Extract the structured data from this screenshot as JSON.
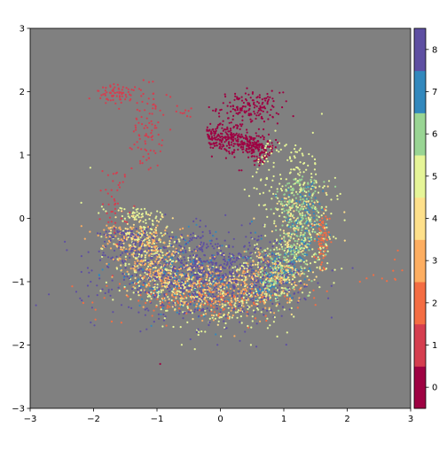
{
  "chart_data": {
    "type": "scatter",
    "title": "",
    "xlabel": "",
    "ylabel": "",
    "xlim": [
      -3,
      3
    ],
    "ylim": [
      -3,
      3
    ],
    "x_ticks": [
      -3,
      -2,
      -1,
      0,
      1,
      2,
      3
    ],
    "y_ticks": [
      -3,
      -2,
      -1,
      0,
      1,
      2,
      3
    ],
    "x_tick_labels": [
      "−3",
      "−2",
      "−1",
      "0",
      "1",
      "2",
      "3"
    ],
    "y_tick_labels": [
      "−3",
      "−2",
      "−1",
      "0",
      "1",
      "2",
      "3"
    ],
    "background_color": "#808080",
    "grid": false,
    "colorbar": {
      "type": "discrete",
      "labels": [
        "0",
        "1",
        "2",
        "3",
        "4",
        "5",
        "6",
        "7",
        "8"
      ],
      "colors": [
        "#9e0142",
        "#d53e4f",
        "#f46d43",
        "#fdae61",
        "#fee08b",
        "#e6f598",
        "#99d594",
        "#3288bd",
        "#5e4fa2"
      ],
      "placement": "right"
    },
    "clusters": [
      {
        "class": "0",
        "shape": "arc",
        "cx": 0.0,
        "cy": 0.05,
        "rx": 1.15,
        "ry": 1.25,
        "a0": 100,
        "a1": 48,
        "spread": 0.09,
        "count": 380
      },
      {
        "class": "0",
        "shape": "blob",
        "x": 0.45,
        "y": 1.75,
        "sx": 0.25,
        "sy": 0.12,
        "count": 160
      },
      {
        "class": "1",
        "shape": "blob",
        "x": -1.6,
        "y": 1.95,
        "sx": 0.2,
        "sy": 0.08,
        "count": 70
      },
      {
        "class": "1",
        "shape": "blob",
        "x": -1.15,
        "y": 1.45,
        "sx": 0.12,
        "sy": 0.35,
        "count": 90
      },
      {
        "class": "1",
        "shape": "blob",
        "x": -1.65,
        "y": 0.25,
        "sx": 0.1,
        "sy": 0.3,
        "count": 45
      },
      {
        "class": "1",
        "shape": "blob",
        "x": -0.55,
        "y": 1.7,
        "sx": 0.07,
        "sy": 0.05,
        "count": 10
      },
      {
        "class": "2",
        "shape": "blob",
        "x": 1.6,
        "y": -0.4,
        "sx": 0.06,
        "sy": 0.25,
        "count": 70
      },
      {
        "class": "2",
        "shape": "blob",
        "x": -0.3,
        "y": -1.25,
        "sx": 0.8,
        "sy": 0.18,
        "count": 160
      },
      {
        "class": "2",
        "shape": "blob",
        "x": 2.6,
        "y": -0.85,
        "sx": 0.12,
        "sy": 0.1,
        "count": 8
      },
      {
        "class": "3",
        "shape": "arc",
        "cx": 0.0,
        "cy": -0.1,
        "rx": 1.45,
        "ry": 1.05,
        "a0": 180,
        "a1": 320,
        "spread": 0.22,
        "count": 600
      },
      {
        "class": "4",
        "shape": "arc",
        "cx": 0.0,
        "cy": 0.0,
        "rx": 1.3,
        "ry": 1.2,
        "a0": 175,
        "a1": 380,
        "spread": 0.2,
        "count": 380
      },
      {
        "class": "5",
        "shape": "arc",
        "cx": 0.0,
        "cy": -0.05,
        "rx": 1.35,
        "ry": 1.3,
        "a0": 170,
        "a1": 420,
        "spread": 0.22,
        "count": 900
      },
      {
        "class": "6",
        "shape": "arc",
        "cx": 0.0,
        "cy": 0.0,
        "rx": 1.3,
        "ry": 1.2,
        "a0": 300,
        "a1": 390,
        "spread": 0.15,
        "count": 320
      },
      {
        "class": "7",
        "shape": "arc",
        "cx": 0.0,
        "cy": 0.0,
        "rx": 1.35,
        "ry": 1.25,
        "a0": 290,
        "a1": 385,
        "spread": 0.12,
        "count": 200
      },
      {
        "class": "7",
        "shape": "blob",
        "x": -0.6,
        "y": -0.9,
        "sx": 0.6,
        "sy": 0.3,
        "count": 150
      },
      {
        "class": "8",
        "shape": "blob",
        "x": -0.2,
        "y": -0.9,
        "sx": 0.75,
        "sy": 0.32,
        "count": 1000
      },
      {
        "class": "8",
        "shape": "arc",
        "cx": 0.0,
        "cy": 0.0,
        "rx": 1.55,
        "ry": 1.0,
        "a0": 190,
        "a1": 215,
        "spread": 0.12,
        "count": 110
      }
    ],
    "outliers": [
      {
        "x": -0.95,
        "y": -2.3,
        "class": "0"
      },
      {
        "x": 2.55,
        "y": -0.95,
        "class": "2"
      },
      {
        "x": 2.75,
        "y": -0.65,
        "class": "2"
      },
      {
        "x": 2.2,
        "y": -1.0,
        "class": "2"
      },
      {
        "x": -2.05,
        "y": 0.8,
        "class": "5"
      },
      {
        "x": 1.6,
        "y": 1.65,
        "class": "5"
      },
      {
        "x": -0.85,
        "y": 1.95,
        "class": "1"
      }
    ]
  }
}
